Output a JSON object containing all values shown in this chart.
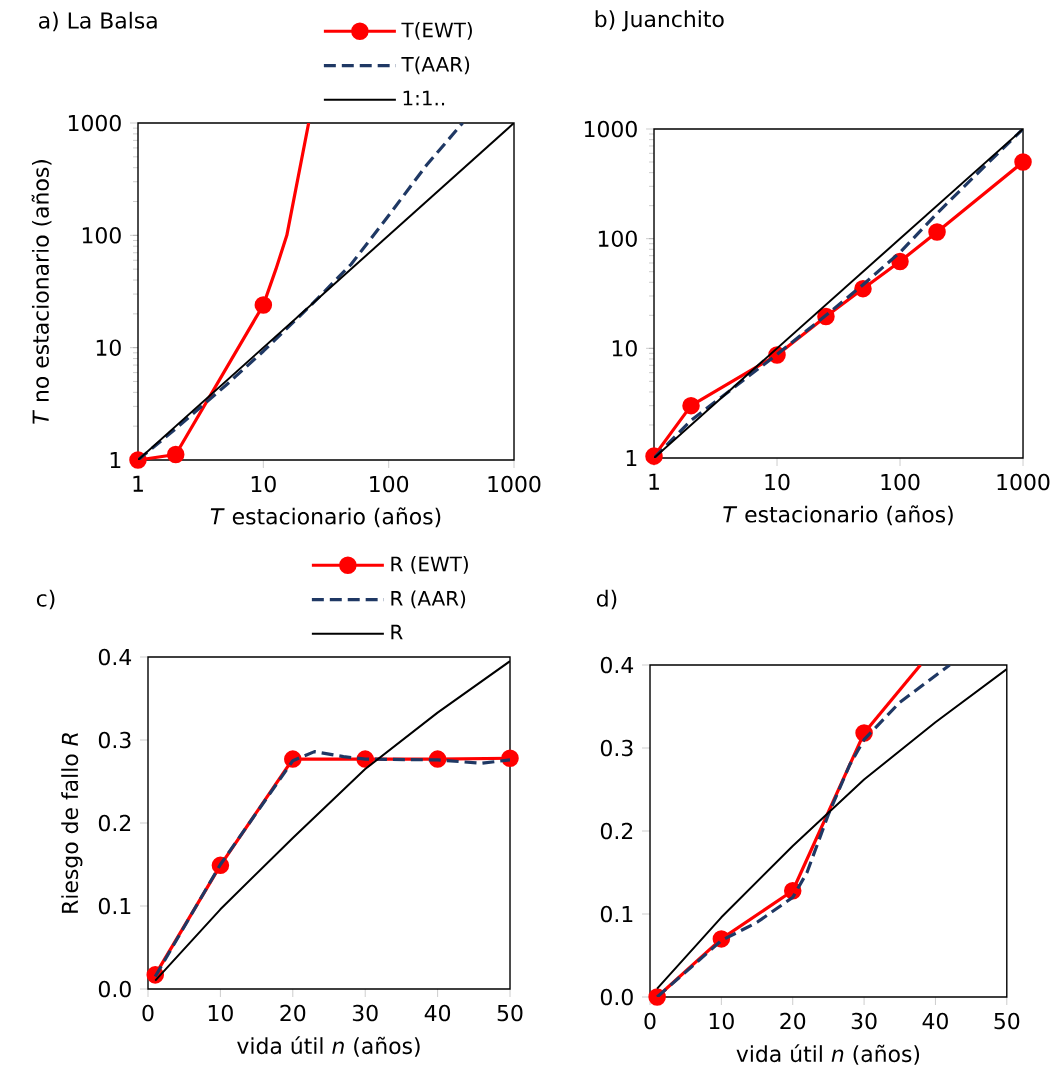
{
  "chart_data": [
    {
      "type": "line",
      "title": "a)  La Balsa",
      "xlabel": "*T* estacionario (años)",
      "ylabel": "*T* no estacionario (años)",
      "log": "xy",
      "legend": "top right",
      "xlim": [
        1,
        1000
      ],
      "ylim": [
        1,
        1000
      ],
      "xticks": [
        1,
        10,
        100,
        1000
      ],
      "yticks": [
        1,
        10,
        100,
        1000
      ],
      "series": [
        {
          "name": "T(EWT)",
          "color": "#ff0000",
          "x": [
            1,
            2,
            10
          ],
          "values": [
            1,
            1.12,
            24
          ],
          "marker": "circle",
          "line_style": "solid"
        },
        {
          "color": "#ff0000",
          "x": [
            10,
            12.6,
            15.4,
            23
          ],
          "values": [
            24,
            50,
            100,
            1000
          ],
          "marker": "none",
          "line_style": "solid"
        },
        {
          "name": "T(AAR)",
          "color": "#1f3864",
          "x": [
            1,
            2,
            5,
            10,
            25,
            50,
            100,
            200,
            389
          ],
          "values": [
            1,
            1.9,
            4.6,
            9.3,
            25,
            55,
            150,
            420,
            1000
          ],
          "marker": "none",
          "line_style": "dashed"
        },
        {
          "name": "1:1..",
          "color": "#000000",
          "x": [
            1,
            1000
          ],
          "values": [
            1,
            1000
          ],
          "marker": "none",
          "line_style": "solid"
        }
      ]
    },
    {
      "type": "line",
      "title": "b)  Juanchito",
      "xlabel": "*T* estacionario (años)",
      "log": "xy",
      "xlim": [
        1,
        1000
      ],
      "ylim": [
        1,
        1000
      ],
      "xticks": [
        1,
        10,
        100,
        1000
      ],
      "yticks": [
        1,
        10,
        100,
        1000
      ],
      "series": [
        {
          "color": "#ff0000",
          "x": [
            1,
            2,
            10,
            25,
            50,
            100,
            200,
            1000
          ],
          "values": [
            1.04,
            3.0,
            8.7,
            19.5,
            35,
            62,
            115,
            500
          ],
          "marker": "circle",
          "line_style": "solid"
        },
        {
          "color": "#1f3864",
          "x": [
            1,
            2,
            10,
            25,
            50,
            100,
            200,
            500,
            1000
          ],
          "values": [
            1,
            2.2,
            8.8,
            20,
            38,
            75,
            170,
            470,
            1000
          ],
          "marker": "none",
          "line_style": "dashed"
        },
        {
          "color": "#000000",
          "x": [
            1,
            1000
          ],
          "values": [
            1,
            1000
          ],
          "marker": "none",
          "line_style": "solid"
        }
      ]
    },
    {
      "type": "line",
      "title": "c)",
      "xlabel": "vida útil *n* (años)",
      "ylabel": "Riesgo de fallo *R*",
      "legend": "top right",
      "xlim": [
        0,
        50
      ],
      "ylim": [
        0,
        0.4
      ],
      "xticks": [
        0,
        10,
        20,
        30,
        40,
        50
      ],
      "yticks": [
        {
          "value": 0,
          "label": "0.0"
        },
        0.1,
        0.2,
        0.3,
        0.4
      ],
      "series": [
        {
          "name": "R (EWT)",
          "color": "#ff0000",
          "x": [
            1,
            10,
            20,
            30,
            40,
            50
          ],
          "values": [
            0.017,
            0.149,
            0.277,
            0.277,
            0.277,
            0.278
          ],
          "marker": "circle",
          "line_style": "solid"
        },
        {
          "name": "R (AAR)",
          "color": "#1f3864",
          "x": [
            1,
            10,
            20,
            23,
            27,
            30,
            40,
            46,
            50
          ],
          "values": [
            0.015,
            0.15,
            0.275,
            0.286,
            0.28,
            0.277,
            0.276,
            0.272,
            0.276
          ],
          "marker": "none",
          "line_style": "dashed"
        },
        {
          "name": "R",
          "color": "#000000",
          "x": [
            1,
            10,
            20,
            30,
            40,
            50
          ],
          "values": [
            0.01,
            0.096,
            0.182,
            0.265,
            0.333,
            0.395
          ],
          "marker": "none",
          "line_style": "solid"
        }
      ]
    },
    {
      "type": "line",
      "title": "d)",
      "xlabel": "vida útil *n* (años)",
      "xlim": [
        0,
        50
      ],
      "ylim": [
        0,
        0.4
      ],
      "xticks": [
        0,
        10,
        20,
        30,
        40,
        50
      ],
      "yticks": [
        {
          "value": 0,
          "label": "0.0"
        },
        0.1,
        0.2,
        0.3,
        0.4
      ],
      "series": [
        {
          "color": "#ff0000",
          "x": [
            1,
            10,
            20,
            30
          ],
          "values": [
            0,
            0.07,
            0.128,
            0.318
          ],
          "marker": "circle",
          "line_style": "solid"
        },
        {
          "color": "#ff0000",
          "x": [
            30,
            37.9
          ],
          "values": [
            0.318,
            0.4
          ],
          "marker": "none",
          "line_style": "solid"
        },
        {
          "color": "#1f3864",
          "x": [
            1,
            10,
            15,
            20,
            22,
            25,
            28,
            30,
            35,
            42
          ],
          "values": [
            0,
            0.068,
            0.09,
            0.12,
            0.15,
            0.22,
            0.28,
            0.31,
            0.355,
            0.4
          ],
          "marker": "none",
          "line_style": "dashed"
        },
        {
          "color": "#000000",
          "x": [
            1,
            10,
            20,
            25,
            30,
            40,
            50
          ],
          "values": [
            0.01,
            0.096,
            0.182,
            0.222,
            0.262,
            0.331,
            0.395
          ],
          "marker": "none",
          "line_style": "solid"
        }
      ]
    }
  ]
}
